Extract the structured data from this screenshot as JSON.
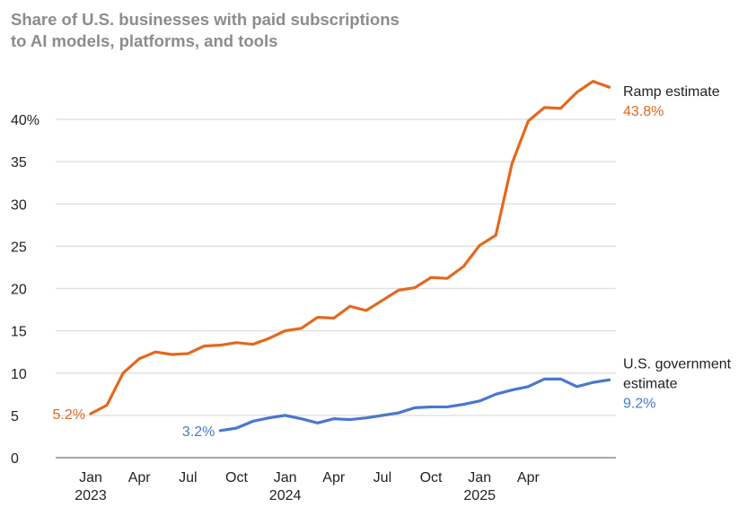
{
  "chart_data": {
    "type": "line",
    "title": "Share of U.S. businesses with paid subscriptions to AI models, platforms, and tools",
    "title_lines": [
      "Share of U.S. businesses with paid subscriptions",
      "to AI models, platforms, and tools"
    ],
    "xlabel": "",
    "ylabel": "",
    "ylim": [
      0,
      45
    ],
    "y_ticks": [
      0,
      5,
      10,
      15,
      20,
      25,
      30,
      35,
      40
    ],
    "y_tick_labels": [
      "0",
      "5",
      "10",
      "15",
      "20",
      "25",
      "30",
      "35",
      "40%"
    ],
    "x_start": "2023-01",
    "x_ticks": [
      {
        "month": "2023-01",
        "label": "Jan",
        "year": "2023"
      },
      {
        "month": "2023-04",
        "label": "Apr",
        "year": ""
      },
      {
        "month": "2023-07",
        "label": "Jul",
        "year": ""
      },
      {
        "month": "2023-10",
        "label": "Oct",
        "year": ""
      },
      {
        "month": "2024-01",
        "label": "Jan",
        "year": "2024"
      },
      {
        "month": "2024-04",
        "label": "Apr",
        "year": ""
      },
      {
        "month": "2024-07",
        "label": "Jul",
        "year": ""
      },
      {
        "month": "2024-10",
        "label": "Oct",
        "year": ""
      },
      {
        "month": "2025-01",
        "label": "Jan",
        "year": "2025"
      },
      {
        "month": "2025-04",
        "label": "Apr",
        "year": ""
      }
    ],
    "grid": true,
    "series": [
      {
        "name": "Ramp estimate",
        "name_lines": [
          "Ramp estimate"
        ],
        "color": "#E3691F",
        "start": "2023-01",
        "start_label": "5.2%",
        "end_label": "43.8%",
        "values": [
          5.2,
          6.2,
          10.0,
          11.7,
          12.5,
          12.2,
          12.3,
          13.2,
          13.3,
          13.6,
          13.4,
          14.1,
          15.0,
          15.3,
          16.6,
          16.5,
          17.9,
          17.4,
          18.6,
          19.8,
          20.1,
          21.3,
          21.2,
          22.6,
          25.1,
          26.3,
          34.8,
          39.8,
          41.4,
          41.3,
          43.2,
          44.5,
          43.8
        ]
      },
      {
        "name": "U.S. government estimate",
        "name_lines": [
          "U.S. government",
          "estimate"
        ],
        "color": "#4A78CC",
        "start": "2023-09",
        "start_label": "3.2%",
        "end_label": "9.2%",
        "values": [
          3.2,
          3.5,
          4.3,
          4.7,
          5.0,
          4.6,
          4.1,
          4.6,
          4.5,
          4.7,
          5.0,
          5.3,
          5.9,
          6.0,
          6.0,
          6.3,
          6.7,
          7.5,
          8.0,
          8.4,
          9.3,
          9.3,
          8.4,
          8.9,
          9.2
        ]
      }
    ]
  }
}
